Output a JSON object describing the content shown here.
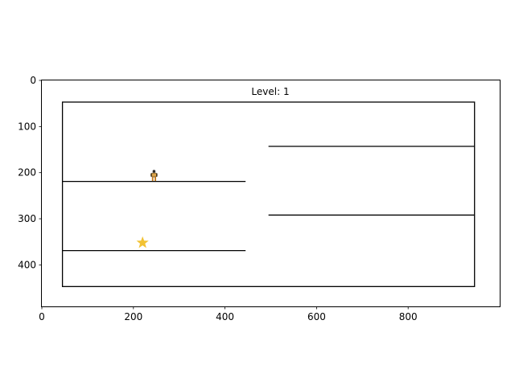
{
  "hud": {
    "level_text": "Level: 1"
  },
  "axes": {
    "x_ticks": [
      "0",
      "200",
      "400",
      "600",
      "800"
    ],
    "y_ticks": [
      "0",
      "100",
      "200",
      "300",
      "400"
    ],
    "x_tick_values": [
      0,
      200,
      400,
      600,
      800
    ],
    "y_tick_values": [
      0,
      100,
      200,
      300,
      400
    ],
    "xlim": [
      0,
      1000
    ],
    "ylim": [
      490,
      0
    ]
  },
  "world": {
    "boundary": {
      "x1": 45,
      "y1": 47,
      "x2": 945,
      "y2": 447
    },
    "platforms": [
      {
        "x1": 45,
        "x2": 445,
        "y": 219
      },
      {
        "x1": 45,
        "x2": 445,
        "y": 369
      },
      {
        "x1": 495,
        "x2": 945,
        "y": 143
      },
      {
        "x1": 495,
        "x2": 945,
        "y": 292
      }
    ],
    "player": {
      "x": 245,
      "y": 205,
      "icon": "player-sprite"
    },
    "star": {
      "x": 220,
      "y": 352,
      "icon": "star-icon",
      "color": "#f2c233"
    }
  },
  "colors": {
    "line": "#000000",
    "background": "#ffffff"
  }
}
